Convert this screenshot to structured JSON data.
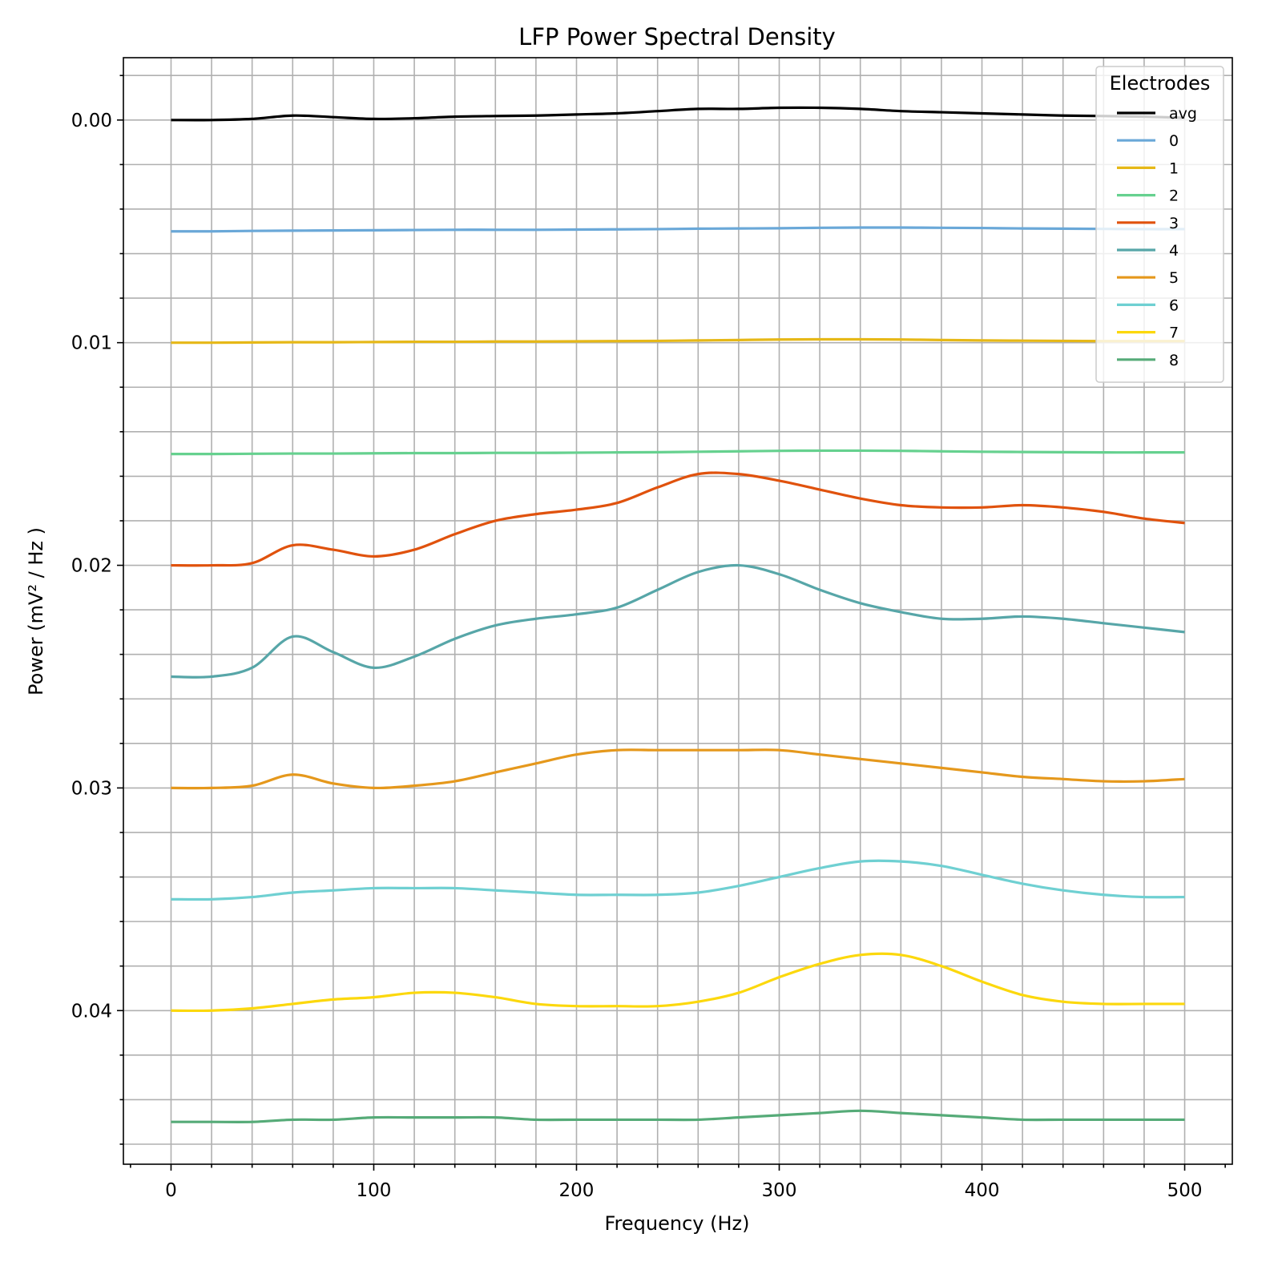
{
  "chart_data": {
    "type": "line",
    "title": "LFP Power Spectral Density",
    "xlabel": "Frequency (Hz)",
    "ylabel": "Power (mV² / Hz )",
    "xlim": [
      -23.5,
      523.5
    ],
    "ylim": [
      0.0469,
      -0.0028
    ],
    "y_inverted": true,
    "grid": "major and minor",
    "x_ticks": [
      0,
      100,
      200,
      300,
      400,
      500
    ],
    "x_tick_labels": [
      "0",
      "100",
      "200",
      "300",
      "400",
      "500"
    ],
    "y_ticks": [
      0.0,
      0.01,
      0.02,
      0.03,
      0.04
    ],
    "y_tick_labels": [
      "0.00",
      "0.01",
      "0.02",
      "0.03",
      "0.04"
    ],
    "legend": {
      "title": "Electrodes",
      "placement": "top-right"
    },
    "x": [
      0,
      20,
      40,
      60,
      80,
      100,
      120,
      140,
      160,
      180,
      200,
      220,
      240,
      260,
      280,
      300,
      320,
      340,
      360,
      380,
      400,
      420,
      440,
      460,
      480,
      500
    ],
    "series": [
      {
        "name": "avg",
        "color": "#000000",
        "values": [
          0.0,
          0.0,
          -5e-05,
          -0.0002,
          -0.00013,
          -5e-05,
          -8e-05,
          -0.00015,
          -0.00018,
          -0.0002,
          -0.00025,
          -0.0003,
          -0.0004,
          -0.0005,
          -0.0005,
          -0.00055,
          -0.00055,
          -0.0005,
          -0.0004,
          -0.00035,
          -0.0003,
          -0.00025,
          -0.0002,
          -0.00018,
          -0.00015,
          -0.0001
        ]
      },
      {
        "name": "0",
        "color": "#6aa8d8",
        "values": [
          0.005,
          0.005,
          0.00498,
          0.00497,
          0.00496,
          0.00495,
          0.00494,
          0.00493,
          0.00493,
          0.00493,
          0.00492,
          0.00491,
          0.0049,
          0.00488,
          0.00487,
          0.00486,
          0.00484,
          0.00483,
          0.00483,
          0.00484,
          0.00485,
          0.00487,
          0.00488,
          0.00489,
          0.0049,
          0.0049
        ]
      },
      {
        "name": "1",
        "color": "#e6b817",
        "values": [
          0.01,
          0.01,
          0.00999,
          0.00998,
          0.00998,
          0.00997,
          0.00996,
          0.00996,
          0.00995,
          0.00995,
          0.00994,
          0.00993,
          0.00992,
          0.0099,
          0.00988,
          0.00986,
          0.00985,
          0.00985,
          0.00986,
          0.00988,
          0.0099,
          0.00991,
          0.00992,
          0.00993,
          0.00993,
          0.00993
        ]
      },
      {
        "name": "2",
        "color": "#66d18f",
        "values": [
          0.015,
          0.015,
          0.01499,
          0.01498,
          0.01498,
          0.01497,
          0.01496,
          0.01496,
          0.01495,
          0.01495,
          0.01494,
          0.01493,
          0.01492,
          0.0149,
          0.01488,
          0.01486,
          0.01485,
          0.01485,
          0.01486,
          0.01488,
          0.0149,
          0.01491,
          0.01492,
          0.01493,
          0.01493,
          0.01493
        ]
      },
      {
        "name": "3",
        "color": "#e0520d",
        "values": [
          0.02,
          0.02,
          0.0199,
          0.0191,
          0.0193,
          0.0196,
          0.0193,
          0.0186,
          0.018,
          0.0177,
          0.0175,
          0.0172,
          0.0165,
          0.0159,
          0.0159,
          0.0162,
          0.0166,
          0.017,
          0.0173,
          0.0174,
          0.0174,
          0.0173,
          0.0174,
          0.0176,
          0.0179,
          0.0181
        ]
      },
      {
        "name": "4",
        "color": "#57a6a8",
        "values": [
          0.025,
          0.025,
          0.0246,
          0.0232,
          0.0239,
          0.0246,
          0.0241,
          0.0233,
          0.0227,
          0.0224,
          0.0222,
          0.0219,
          0.0211,
          0.0203,
          0.02,
          0.0204,
          0.0211,
          0.0217,
          0.0221,
          0.0224,
          0.0224,
          0.0223,
          0.0224,
          0.0226,
          0.0228,
          0.023
        ]
      },
      {
        "name": "5",
        "color": "#e5981c",
        "values": [
          0.03,
          0.03,
          0.0299,
          0.0294,
          0.0298,
          0.03,
          0.0299,
          0.0297,
          0.0293,
          0.0289,
          0.0285,
          0.0283,
          0.0283,
          0.0283,
          0.0283,
          0.0283,
          0.0285,
          0.0287,
          0.0289,
          0.0291,
          0.0293,
          0.0295,
          0.0296,
          0.0297,
          0.0297,
          0.0296
        ]
      },
      {
        "name": "6",
        "color": "#6fd0d2",
        "values": [
          0.035,
          0.035,
          0.0349,
          0.0347,
          0.0346,
          0.0345,
          0.0345,
          0.0345,
          0.0346,
          0.0347,
          0.0348,
          0.0348,
          0.0348,
          0.0347,
          0.0344,
          0.034,
          0.0336,
          0.0333,
          0.0333,
          0.0335,
          0.0339,
          0.0343,
          0.0346,
          0.0348,
          0.0349,
          0.0349
        ]
      },
      {
        "name": "7",
        "color": "#fcd80d",
        "values": [
          0.04,
          0.04,
          0.0399,
          0.0397,
          0.0395,
          0.0394,
          0.0392,
          0.0392,
          0.0394,
          0.0397,
          0.0398,
          0.0398,
          0.0398,
          0.0396,
          0.0392,
          0.0385,
          0.0379,
          0.0375,
          0.0375,
          0.038,
          0.0387,
          0.0393,
          0.0396,
          0.0397,
          0.0397,
          0.0397
        ]
      },
      {
        "name": "8",
        "color": "#56ab78",
        "values": [
          0.045,
          0.045,
          0.045,
          0.0449,
          0.0449,
          0.0448,
          0.0448,
          0.0448,
          0.0448,
          0.0449,
          0.0449,
          0.0449,
          0.0449,
          0.0449,
          0.0448,
          0.0447,
          0.0446,
          0.0445,
          0.0446,
          0.0447,
          0.0448,
          0.0449,
          0.0449,
          0.0449,
          0.0449,
          0.0449
        ]
      }
    ]
  }
}
